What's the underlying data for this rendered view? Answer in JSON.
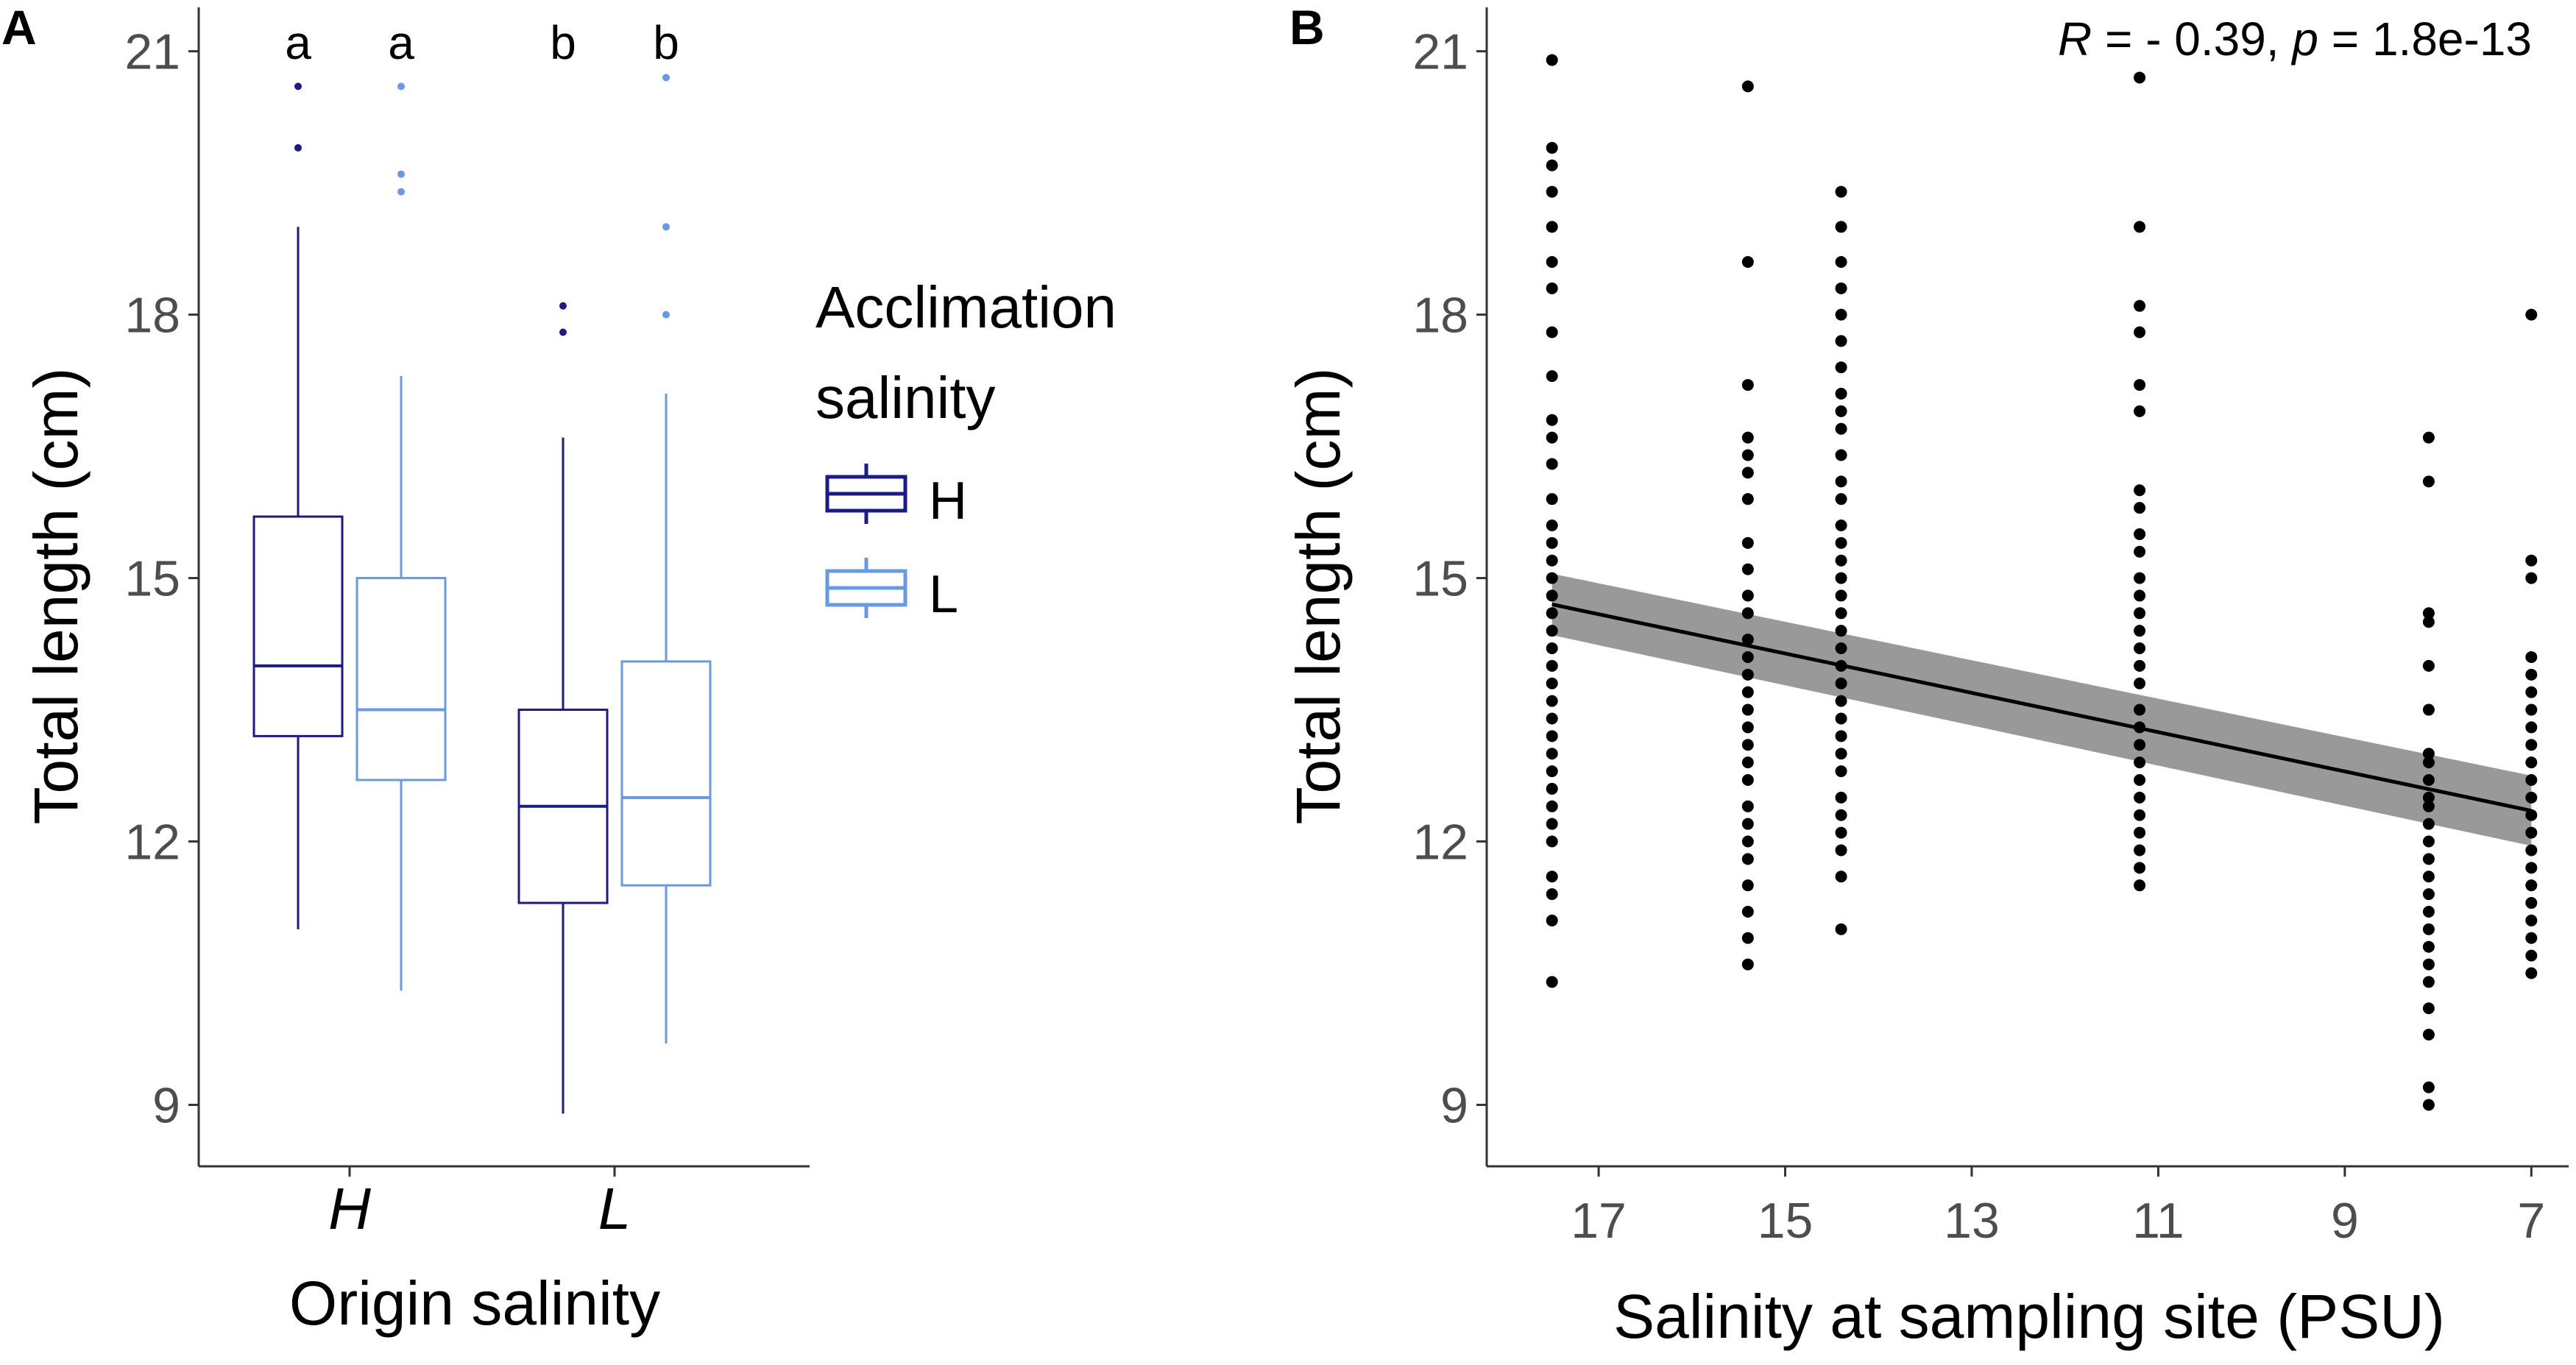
{
  "panels": {
    "a": "A",
    "b": "B"
  },
  "chart_data": [
    {
      "type": "box",
      "panel": "A",
      "xlabel": "Origin salinity",
      "ylabel": "Total length (cm)",
      "ylim": [
        8.3,
        21.5
      ],
      "yticks": [
        9,
        12,
        15,
        18,
        21
      ],
      "categories": [
        "H",
        "L"
      ],
      "legend": {
        "title_line1": "Acclimation",
        "title_line2": "salinity",
        "entries": [
          {
            "label": "H",
            "color": "#1a1a8c"
          },
          {
            "label": "L",
            "color": "#6699e6"
          }
        ]
      },
      "series": [
        {
          "name": "H",
          "color": "#1a1a8c",
          "boxes": [
            {
              "category": "H",
              "whisker_low": 11.0,
              "q1": 13.2,
              "median": 14.0,
              "q3": 15.7,
              "whisker_high": 19.0,
              "outliers": [
                19.9,
                20.6
              ],
              "letter": "a"
            },
            {
              "category": "L",
              "whisker_low": 8.9,
              "q1": 11.3,
              "median": 12.4,
              "q3": 13.5,
              "whisker_high": 16.6,
              "outliers": [
                17.8,
                18.1
              ],
              "letter": "b"
            }
          ]
        },
        {
          "name": "L",
          "color": "#6699e6",
          "boxes": [
            {
              "category": "H",
              "whisker_low": 10.3,
              "q1": 12.7,
              "median": 13.5,
              "q3": 15.0,
              "whisker_high": 17.3,
              "outliers": [
                19.4,
                19.6,
                20.6
              ],
              "letter": "a"
            },
            {
              "category": "L",
              "whisker_low": 9.7,
              "q1": 11.5,
              "median": 12.5,
              "q3": 14.05,
              "whisker_high": 17.1,
              "outliers": [
                18.0,
                19.0,
                20.7
              ],
              "letter": "b"
            }
          ]
        }
      ]
    },
    {
      "type": "scatter",
      "panel": "B",
      "xlabel": "Salinity at sampling site (PSU)",
      "ylabel": "Total length (cm)",
      "xlim": [
        18.2,
        6.6
      ],
      "ylim": [
        8.3,
        21.5
      ],
      "xticks": [
        17,
        15,
        13,
        11,
        9,
        7
      ],
      "yticks": [
        9,
        12,
        15,
        18,
        21
      ],
      "annotation": {
        "r_symbol": "R",
        "r_text": " = - 0.39, ",
        "p_symbol": "p",
        "p_text": " = 1.8e-13"
      },
      "regression": {
        "x": [
          17.5,
          7.0
        ],
        "y": [
          14.7,
          12.35
        ],
        "ci_low": [
          14.35,
          11.95
        ],
        "ci_high": [
          15.05,
          12.75
        ]
      },
      "groups": [
        {
          "x": 17.5,
          "y": [
            20.9,
            19.9,
            19.7,
            19.4,
            19.0,
            18.6,
            18.3,
            17.8,
            17.3,
            16.8,
            16.6,
            16.3,
            15.9,
            15.6,
            15.4,
            15.2,
            15.0,
            14.8,
            14.6,
            14.4,
            14.2,
            14.0,
            13.8,
            13.6,
            13.4,
            13.2,
            13.0,
            12.8,
            12.6,
            12.4,
            12.2,
            12.0,
            11.6,
            11.4,
            11.1,
            10.4
          ]
        },
        {
          "x": 15.4,
          "y": [
            20.6,
            18.6,
            17.2,
            16.6,
            16.4,
            16.2,
            15.9,
            15.4,
            15.1,
            14.8,
            14.6,
            14.3,
            14.1,
            13.9,
            13.7,
            13.5,
            13.3,
            13.1,
            12.9,
            12.7,
            12.4,
            12.2,
            12.0,
            11.8,
            11.5,
            11.2,
            10.9,
            10.6
          ]
        },
        {
          "x": 14.4,
          "y": [
            19.4,
            19.0,
            18.6,
            18.3,
            18.0,
            17.7,
            17.4,
            17.1,
            16.9,
            16.7,
            16.4,
            16.1,
            15.9,
            15.6,
            15.4,
            15.2,
            15.0,
            14.8,
            14.6,
            14.4,
            14.2,
            14.0,
            13.8,
            13.6,
            13.4,
            13.2,
            13.0,
            12.8,
            12.5,
            12.3,
            12.1,
            11.9,
            11.6,
            11.0
          ]
        },
        {
          "x": 11.2,
          "y": [
            20.7,
            19.0,
            18.1,
            17.8,
            17.2,
            16.9,
            16.0,
            15.8,
            15.5,
            15.3,
            15.0,
            14.8,
            14.6,
            14.4,
            14.2,
            14.0,
            13.8,
            13.5,
            13.3,
            13.1,
            12.9,
            12.7,
            12.5,
            12.3,
            12.1,
            11.9,
            11.7,
            11.5
          ]
        },
        {
          "x": 8.1,
          "y": [
            16.6,
            16.1,
            14.6,
            14.5,
            14.0,
            13.5,
            13.0,
            12.9,
            12.7,
            12.5,
            12.4,
            12.2,
            12.0,
            11.8,
            11.6,
            11.4,
            11.2,
            11.0,
            10.8,
            10.6,
            10.4,
            10.1,
            9.8,
            9.2,
            9.0
          ]
        },
        {
          "x": 7.0,
          "y": [
            18.0,
            15.2,
            15.0,
            14.1,
            13.9,
            13.7,
            13.5,
            13.3,
            13.1,
            12.9,
            12.7,
            12.5,
            12.3,
            12.1,
            11.9,
            11.7,
            11.5,
            11.3,
            11.1,
            10.9,
            10.7,
            10.5
          ]
        }
      ]
    }
  ]
}
